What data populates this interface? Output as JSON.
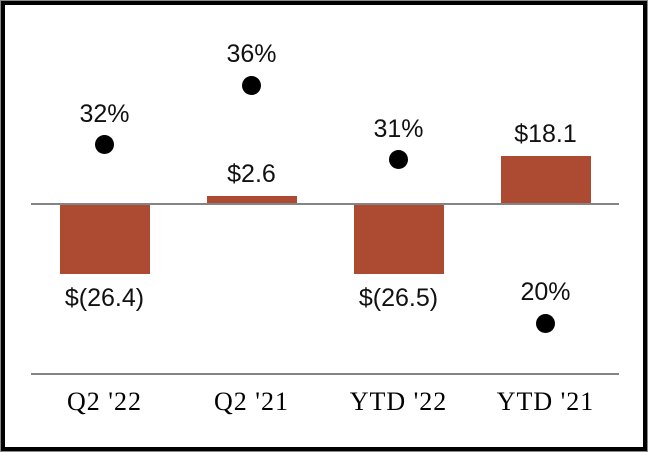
{
  "chart_data": {
    "type": "combo",
    "categories": [
      "Q2 '22",
      "Q2 '21",
      "YTD '22",
      "YTD '21"
    ],
    "series": [
      {
        "name": "dollar-amount-bars",
        "type": "bar",
        "values": [
          -26.4,
          2.6,
          -26.5,
          18.1
        ],
        "labels": [
          "$(26.4)",
          "$2.6",
          "$(26.5)",
          "$18.1"
        ],
        "color": "#AD4A32"
      },
      {
        "name": "percent-dots",
        "type": "scatter",
        "values": [
          32,
          36,
          31,
          20
        ],
        "labels": [
          "32%",
          "36%",
          "31%",
          "20%"
        ],
        "color": "#000000"
      }
    ],
    "title": "",
    "xlabel": "",
    "ylabel": "",
    "axis": {
      "zero_line": true,
      "gridlines": false,
      "legend": "none",
      "zero_line_color": "#848484",
      "x_axis_line_color": "#848484"
    },
    "frame": {
      "outer_color": "#8a8a8a",
      "inner_color": "#000000"
    }
  }
}
